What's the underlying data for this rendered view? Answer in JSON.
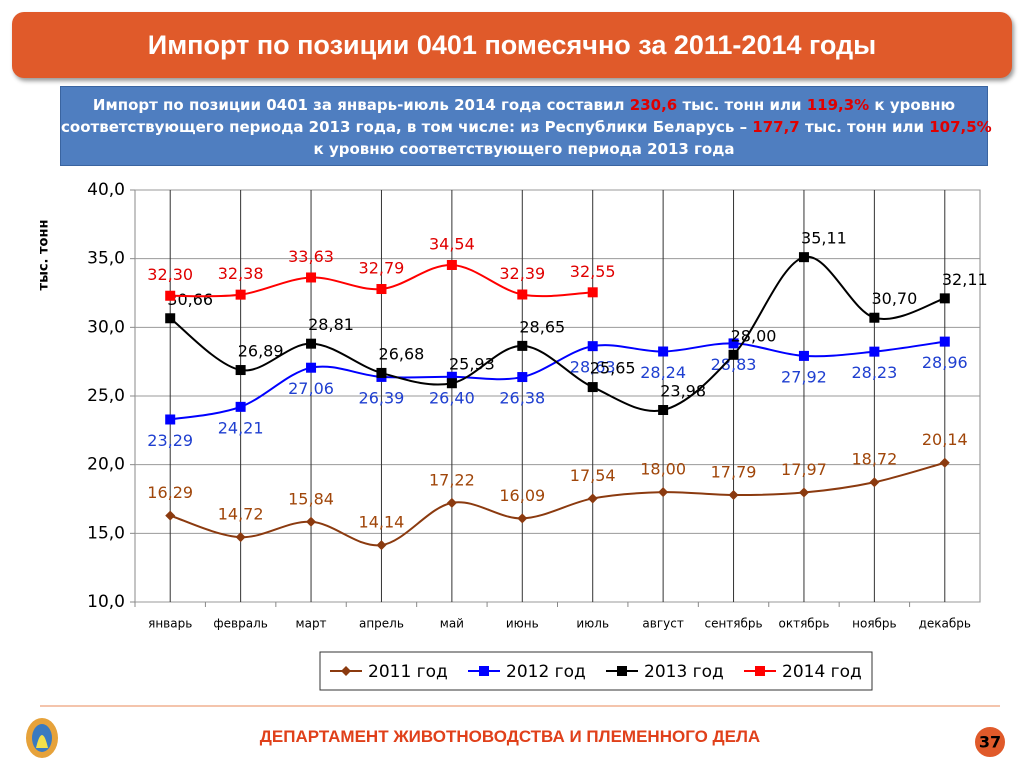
{
  "title": "Импорт по позиции 0401 помесячно за 2011-2014 годы",
  "subtitle": [
    [
      {
        "text": "Импорт по позиции 0401 за январь-июль 2014 года составил "
      },
      {
        "text": "230,6",
        "color": "#e00000"
      },
      {
        "text": " тыс. тонн или "
      },
      {
        "text": "119,3%",
        "color": "#e00000"
      },
      {
        "text": " к уровню"
      }
    ],
    [
      {
        "text": "соответствующего периода 2013 года, в том числе: из Республики Беларусь – "
      },
      {
        "text": "177,7",
        "color": "#e00000"
      },
      {
        "text": " тыс. тонн или "
      },
      {
        "text": "107,5%",
        "color": "#e00000"
      }
    ],
    [
      {
        "text": "к уровню соответствующего периода 2013 года"
      }
    ]
  ],
  "chart_data": {
    "type": "line",
    "y_label": "тыс. тонн",
    "categories": [
      "январь",
      "февраль",
      "март",
      "апрель",
      "май",
      "июнь",
      "июль",
      "август",
      "сентябрь",
      "октябрь",
      "ноябрь",
      "декабрь"
    ],
    "ylim": [
      10,
      40
    ],
    "yticks": [
      {
        "value": 10,
        "label": "10,0"
      },
      {
        "value": 15,
        "label": "15,0"
      },
      {
        "value": 20,
        "label": "20,0"
      },
      {
        "value": 25,
        "label": "25,0"
      },
      {
        "value": 30,
        "label": "30,0"
      },
      {
        "value": 35,
        "label": "35,0"
      },
      {
        "value": 40,
        "label": "40,0"
      }
    ],
    "grid": true,
    "legend": "bottom",
    "series": [
      {
        "name": "2011 год",
        "color": "#8b3a0f",
        "label_color": "#a0460a",
        "marker": "diamond",
        "values": [
          16.29,
          14.72,
          15.84,
          14.14,
          17.22,
          16.09,
          17.54,
          18.0,
          17.79,
          17.97,
          18.72,
          20.14
        ],
        "value_labels": [
          "16,29",
          "14,72",
          "15,84",
          "14,14",
          "17,22",
          "16,09",
          "17,54",
          "18,00",
          "17,79",
          "17,97",
          "18,72",
          "20,14"
        ]
      },
      {
        "name": "2012 год",
        "color": "#0000ff",
        "label_color": "#1f3fd0",
        "marker": "square",
        "values": [
          23.29,
          24.21,
          27.06,
          26.39,
          26.4,
          26.38,
          28.63,
          28.24,
          28.83,
          27.92,
          28.23,
          28.96
        ],
        "value_labels": [
          "23,29",
          "24,21",
          "27,06",
          "26,39",
          "26,40",
          "26,38",
          "28,63",
          "28,24",
          "28,83",
          "27,92",
          "28,23",
          "28,96"
        ]
      },
      {
        "name": "2013 год",
        "color": "#000000",
        "label_color": "#000000",
        "marker": "square",
        "values": [
          30.66,
          26.89,
          28.81,
          26.68,
          25.93,
          28.65,
          25.65,
          23.98,
          28.0,
          35.11,
          30.7,
          32.11
        ],
        "value_labels": [
          "30,66",
          "26,89",
          "28,81",
          "26,68",
          "25,93",
          "28,65",
          "25,65",
          "23,98",
          "28,00",
          "35,11",
          "30,70",
          "32,11"
        ]
      },
      {
        "name": "2014 год",
        "color": "#ff0000",
        "label_color": "#e00000",
        "marker": "square",
        "values": [
          32.3,
          32.38,
          33.63,
          32.79,
          34.54,
          32.39,
          32.55,
          null,
          null,
          null,
          null,
          null
        ],
        "value_labels": [
          "32,30",
          "32,38",
          "33,63",
          "32,79",
          "34,54",
          "32,39",
          "32,55",
          null,
          null,
          null,
          null,
          null
        ]
      }
    ]
  },
  "footer": {
    "text": "ДЕПАРТАМЕНТ ЖИВОТНОВОДСТВА И ПЛЕМЕННОГО ДЕЛА",
    "page": "37"
  }
}
